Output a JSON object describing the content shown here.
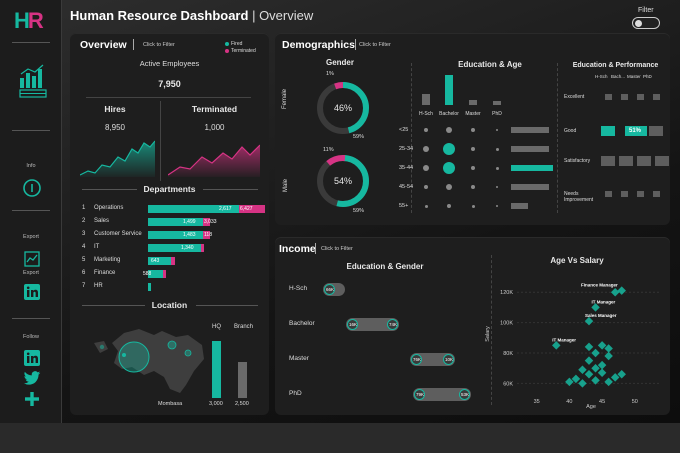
{
  "app": {
    "title": "Human Resource Dashboard",
    "subtitle": "Overview",
    "logo": "HR",
    "filter_label": "Filter"
  },
  "sidebar": {
    "info": "Info",
    "export_section": "Export",
    "export_item": "Export",
    "follow": "Follow",
    "icons": [
      "dashboard-chart-icon",
      "info-icon",
      "chart-line-icon",
      "linkedin-icon",
      "linkedin-icon",
      "twitter-icon",
      "plus-icon"
    ]
  },
  "overview": {
    "title": "Overview",
    "click_filter": "Click to Filter",
    "legend": [
      "Fired",
      "Terminated"
    ],
    "active_label": "Active Employees",
    "active_value": "7,950",
    "hires_label": "Hires",
    "hires_value": "8,950",
    "terminated_label": "Terminated",
    "terminated_value": "1,000",
    "departments_title": "Departments",
    "departments": [
      {
        "rank": "1",
        "name": "Operations",
        "fired": "2,617",
        "terminated": "6,427",
        "fired_pct": 0.62,
        "term_pct": 0.18
      },
      {
        "rank": "2",
        "name": "Sales",
        "fired": "1,499",
        "terminated": "3,033",
        "fired_pct": 0.38,
        "term_pct": 0.05
      },
      {
        "rank": "3",
        "name": "Customer Service",
        "fired": "1,483",
        "terminated": "118",
        "fired_pct": 0.38,
        "term_pct": 0.05
      },
      {
        "rank": "4",
        "name": "IT",
        "fired": "1,340",
        "terminated": "",
        "fired_pct": 0.36,
        "term_pct": 0.02
      },
      {
        "rank": "5",
        "name": "Marketing",
        "fired": "643",
        "terminated": "",
        "fired_pct": 0.16,
        "term_pct": 0.03
      },
      {
        "rank": "6",
        "name": "Finance",
        "fired": "588",
        "terminated": "",
        "fired_pct": 0.1,
        "term_pct": 0.02
      },
      {
        "rank": "7",
        "name": "HR",
        "fired": "",
        "terminated": "",
        "fired_pct": 0.02,
        "term_pct": 0.0
      }
    ],
    "location_title": "Location",
    "hq_label": "HQ",
    "branch_label": "Branch",
    "hq_value": "3,000",
    "branch_value": "2,500",
    "city": "Mombasa",
    "hq_pct": 0.95,
    "branch_pct": 0.6
  },
  "demographics": {
    "title": "Demographics",
    "click_filter": "Click to Filter",
    "gender_title": "Gender",
    "female_label": "Female",
    "female_pct": "46%",
    "female_top": "1%",
    "female_bottom": "59%",
    "female_value": 0.46,
    "male_label": "Male",
    "male_pct": "54%",
    "male_top": "11%",
    "male_bottom": "59%",
    "male_value": 0.54,
    "edu_age_title": "Education & Age",
    "edu_categories": [
      "H-Sch",
      "Bachelor",
      "Master",
      "PhD"
    ],
    "edu_bar_heights": [
      0.35,
      1.0,
      0.18,
      0.12
    ],
    "age_groups": [
      "<25",
      "25-34",
      "35-44",
      "45-54",
      "55+"
    ],
    "age_bar_widths": [
      0.9,
      0.9,
      1.0,
      0.9,
      0.4
    ],
    "edu_perf_title": "Education & Performance",
    "perf_cols": [
      "H-Sch",
      "Bach...",
      "Master",
      "PhD"
    ],
    "perf_rows": [
      "Excellent",
      "Good",
      "Satisfactory",
      "Needs Improvement"
    ],
    "perf_highlight": "51%"
  },
  "income": {
    "title": "Income",
    "click_filter": "Click to Filter",
    "edu_gender_title": "Education & Gender",
    "rows": [
      {
        "label": "H-Sch",
        "left": "66K",
        "right": ""
      },
      {
        "label": "Bachelor",
        "left": "16K",
        "right": "74K"
      },
      {
        "label": "Master",
        "left": "76K",
        "right": "10K"
      },
      {
        "label": "PhD",
        "left": "79K",
        "right": "53K"
      }
    ],
    "age_salary_title": "Age Vs Salary",
    "y_label": "Salary",
    "x_label": "Age",
    "y_ticks": [
      "120K",
      "100K",
      "80K",
      "60K"
    ],
    "x_ticks": [
      "35",
      "40",
      "45",
      "50"
    ],
    "annotations": [
      "Finance Manager",
      "IT Manager",
      "Sales Manager",
      "IT Manager"
    ]
  },
  "chart_data": {
    "type": "scatter",
    "title": "Age Vs Salary",
    "xlabel": "Age",
    "ylabel": "Salary",
    "xlim": [
      32,
      54
    ],
    "ylim": [
      55,
      130
    ],
    "points": [
      {
        "x": 48,
        "y": 121
      },
      {
        "x": 47,
        "y": 120
      },
      {
        "x": 44,
        "y": 110
      },
      {
        "x": 43,
        "y": 101
      },
      {
        "x": 38,
        "y": 85
      },
      {
        "x": 43,
        "y": 84
      },
      {
        "x": 45,
        "y": 85
      },
      {
        "x": 46,
        "y": 83
      },
      {
        "x": 44,
        "y": 80
      },
      {
        "x": 46,
        "y": 78
      },
      {
        "x": 43,
        "y": 75
      },
      {
        "x": 45,
        "y": 72
      },
      {
        "x": 44,
        "y": 70
      },
      {
        "x": 42,
        "y": 69
      },
      {
        "x": 45,
        "y": 67
      },
      {
        "x": 43,
        "y": 66
      },
      {
        "x": 41,
        "y": 63
      },
      {
        "x": 44,
        "y": 62
      },
      {
        "x": 46,
        "y": 61
      },
      {
        "x": 42,
        "y": 60
      },
      {
        "x": 40,
        "y": 61
      },
      {
        "x": 47,
        "y": 64
      },
      {
        "x": 48,
        "y": 66
      }
    ]
  }
}
